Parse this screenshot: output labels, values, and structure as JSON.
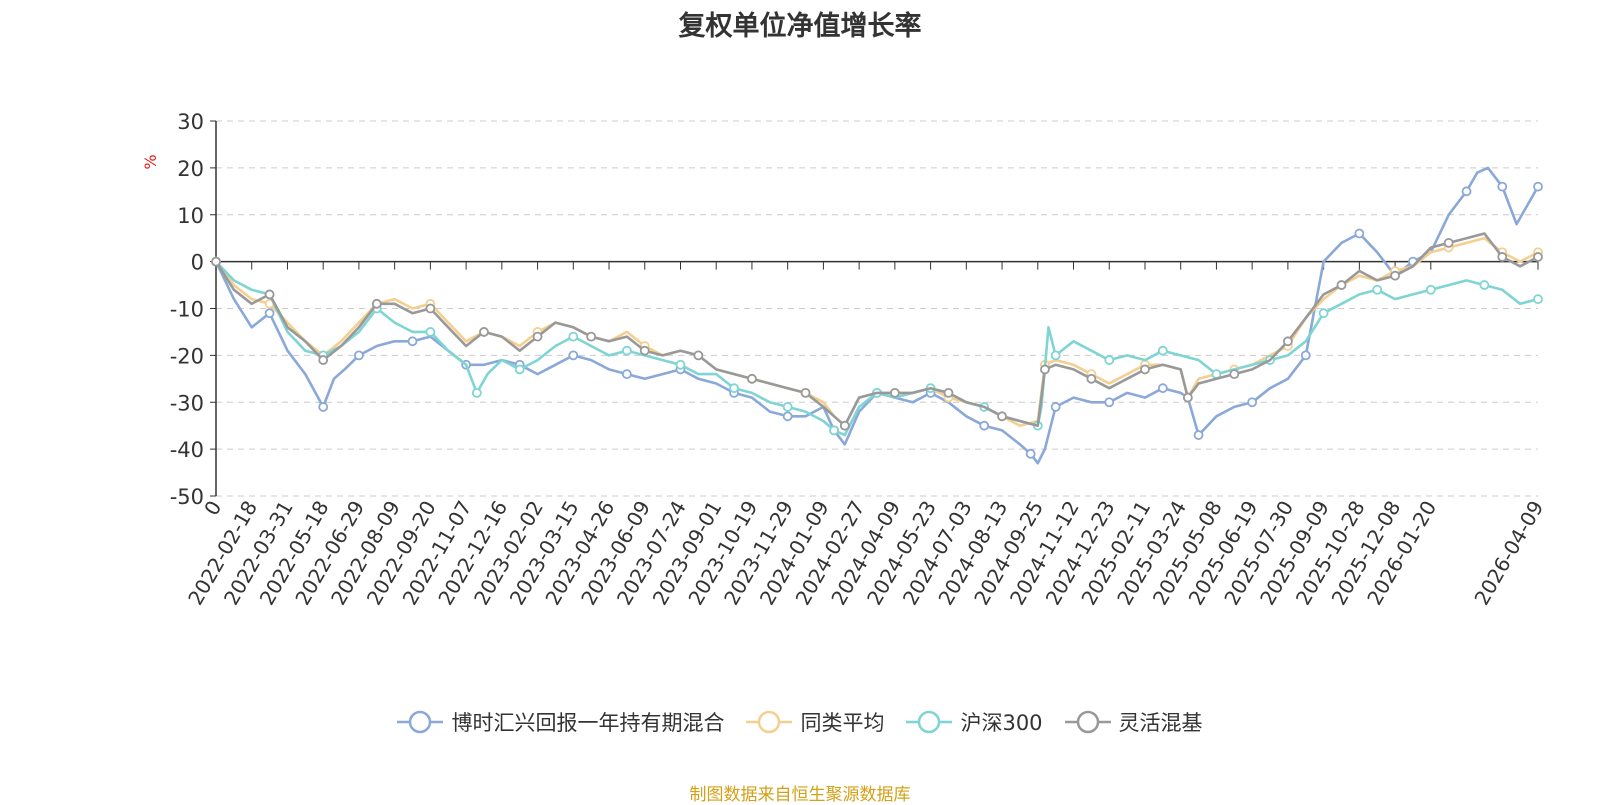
{
  "chart_data": {
    "type": "line",
    "title": "复权单位净值增长率",
    "ylabel": "%",
    "ylim": [
      -50,
      30
    ],
    "yticks": [
      30,
      20,
      10,
      0,
      -10,
      -20,
      -30,
      -40,
      -50
    ],
    "grid": true,
    "legend_position": "bottom",
    "x_tick_labels": [
      "0",
      "2022-02-18",
      "2022-03-31",
      "2022-05-18",
      "2022-06-29",
      "2022-08-09",
      "2022-09-20",
      "2022-11-07",
      "2022-12-16",
      "2023-02-02",
      "2023-03-15",
      "2023-04-26",
      "2023-06-09",
      "2023-07-24",
      "2023-09-01",
      "2023-10-19",
      "2023-11-29",
      "2024-01-09",
      "2024-02-27",
      "2024-04-09",
      "2024-05-23",
      "2024-07-03",
      "2024-08-13",
      "2024-09-25",
      "2024-11-12",
      "2024-12-23",
      "2025-02-11",
      "2025-03-24",
      "2025-05-08",
      "2025-06-19",
      "2025-07-30",
      "2025-09-09",
      "2025-10-28",
      "2025-12-08",
      "2026-01-20",
      "2026-04-09"
    ],
    "x_index_range": [
      0,
      37
    ],
    "x_tick_index": [
      0,
      1,
      2,
      3,
      4,
      5,
      6,
      7,
      8,
      9,
      10,
      11,
      12,
      13,
      14,
      15,
      16,
      17,
      18,
      19,
      20,
      21,
      22,
      23,
      24,
      25,
      26,
      27,
      28,
      29,
      30,
      31,
      32,
      33,
      34,
      37
    ],
    "series": [
      {
        "name": "博时汇兴回报一年持有期混合",
        "color": "#8aa8d8",
        "x": [
          0,
          0.5,
          1,
          1.5,
          2,
          2.5,
          3,
          3.3,
          3.6,
          4,
          4.5,
          5,
          5.5,
          6,
          6.5,
          7,
          7.5,
          8,
          8.5,
          9,
          9.5,
          10,
          10.5,
          11,
          11.5,
          12,
          12.5,
          13,
          13.5,
          14,
          14.5,
          15,
          15.5,
          16,
          16.5,
          17,
          17.3,
          17.6,
          18,
          18.5,
          19,
          19.5,
          20,
          20.5,
          21,
          21.5,
          22,
          22.5,
          22.8,
          23,
          23.2,
          23.5,
          24,
          24.5,
          25,
          25.5,
          26,
          26.5,
          27,
          27.2,
          27.5,
          28,
          28.5,
          29,
          29.5,
          30,
          30.5,
          31,
          31.5,
          32,
          32.5,
          33,
          33.5,
          34,
          34.5,
          35,
          35.3,
          35.6,
          36,
          36.4,
          36.7,
          37
        ],
        "y": [
          0,
          -8,
          -14,
          -11,
          -19,
          -24,
          -31,
          -25,
          -23,
          -20,
          -18,
          -17,
          -17,
          -16,
          -19,
          -22,
          -22,
          -21,
          -22,
          -24,
          -22,
          -20,
          -21,
          -23,
          -24,
          -25,
          -24,
          -23,
          -25,
          -26,
          -28,
          -29,
          -32,
          -33,
          -33,
          -31,
          -36,
          -39,
          -32,
          -28,
          -29,
          -30,
          -28,
          -30,
          -33,
          -35,
          -36,
          -39,
          -41,
          -43,
          -40,
          -31,
          -29,
          -30,
          -30,
          -28,
          -29,
          -27,
          -28,
          -29,
          -37,
          -33,
          -31,
          -30,
          -27,
          -25,
          -20,
          0,
          4,
          6,
          2,
          -3,
          0,
          2,
          10,
          15,
          19,
          20,
          16,
          8,
          12,
          16
        ]
      },
      {
        "name": "同类平均",
        "color": "#f5cf8f",
        "x": [
          0,
          0.5,
          1,
          1.5,
          2,
          2.5,
          3,
          3.5,
          4,
          4.5,
          5,
          5.5,
          6,
          6.5,
          7,
          7.5,
          8,
          8.5,
          9,
          9.5,
          10,
          10.5,
          11,
          11.5,
          12,
          12.5,
          13,
          13.5,
          14,
          14.5,
          15,
          15.5,
          16,
          16.5,
          17,
          17.3,
          17.6,
          18,
          18.5,
          19,
          19.5,
          20,
          20.5,
          21,
          21.5,
          22,
          22.5,
          23,
          23.2,
          23.5,
          24,
          24.5,
          25,
          25.5,
          26,
          26.5,
          27,
          27.2,
          27.5,
          28,
          28.5,
          29,
          29.5,
          30,
          30.5,
          31,
          31.5,
          32,
          32.5,
          33,
          33.5,
          34,
          34.5,
          35,
          35.5,
          36,
          36.5,
          37
        ],
        "y": [
          0,
          -5,
          -8,
          -9,
          -13,
          -17,
          -20,
          -17,
          -13,
          -9,
          -8,
          -10,
          -9,
          -13,
          -17,
          -15,
          -16,
          -18,
          -15,
          -13,
          -14,
          -16,
          -17,
          -15,
          -18,
          -20,
          -19,
          -20,
          -23,
          -24,
          -25,
          -26,
          -27,
          -28,
          -30,
          -33,
          -35,
          -29,
          -28,
          -28,
          -28,
          -27,
          -29,
          -30,
          -31,
          -33,
          -35,
          -34,
          -22,
          -21,
          -22,
          -24,
          -26,
          -24,
          -22,
          -22,
          -23,
          -29,
          -25,
          -24,
          -23,
          -22,
          -20,
          -18,
          -12,
          -8,
          -5,
          -3,
          -4,
          -2,
          -1,
          2,
          3,
          4,
          5,
          2,
          0,
          2
        ]
      },
      {
        "name": "沪深300",
        "color": "#7fd4d4",
        "x": [
          0,
          0.5,
          1,
          1.5,
          2,
          2.5,
          3,
          3.5,
          4,
          4.5,
          5,
          5.5,
          6,
          6.5,
          7,
          7.3,
          7.6,
          8,
          8.5,
          9,
          9.5,
          10,
          10.5,
          11,
          11.5,
          12,
          12.5,
          13,
          13.5,
          14,
          14.5,
          15,
          15.5,
          16,
          16.5,
          17,
          17.3,
          17.6,
          18,
          18.5,
          19,
          19.5,
          20,
          20.5,
          21,
          21.5,
          22,
          22.5,
          23,
          23.1,
          23.3,
          23.5,
          24,
          24.5,
          25,
          25.5,
          26,
          26.5,
          27,
          27.5,
          28,
          28.5,
          29,
          29.5,
          30,
          30.5,
          31,
          31.5,
          32,
          32.5,
          33,
          33.5,
          34,
          34.5,
          35,
          35.5,
          36,
          36.5,
          37
        ],
        "y": [
          0,
          -4,
          -6,
          -7,
          -15,
          -19,
          -20,
          -18,
          -15,
          -10,
          -13,
          -15,
          -15,
          -19,
          -22,
          -28,
          -24,
          -21,
          -23,
          -21,
          -18,
          -16,
          -18,
          -20,
          -19,
          -20,
          -21,
          -22,
          -24,
          -24,
          -27,
          -28,
          -30,
          -31,
          -32,
          -34,
          -36,
          -37,
          -31,
          -28,
          -29,
          -28,
          -27,
          -28,
          -30,
          -31,
          -33,
          -34,
          -35,
          -31,
          -14,
          -20,
          -17,
          -19,
          -21,
          -20,
          -21,
          -19,
          -20,
          -21,
          -24,
          -23,
          -22,
          -21,
          -20,
          -17,
          -11,
          -9,
          -7,
          -6,
          -8,
          -7,
          -6,
          -5,
          -4,
          -5,
          -6,
          -9,
          -8
        ]
      },
      {
        "name": "灵活混基",
        "color": "#999999",
        "x": [
          0,
          0.5,
          1,
          1.5,
          2,
          2.5,
          3,
          3.5,
          4,
          4.5,
          5,
          5.5,
          6,
          6.5,
          7,
          7.5,
          8,
          8.5,
          9,
          9.5,
          10,
          10.5,
          11,
          11.5,
          12,
          12.5,
          13,
          13.5,
          14,
          14.5,
          15,
          15.5,
          16,
          16.5,
          17,
          17.3,
          17.6,
          18,
          18.5,
          19,
          19.5,
          20,
          20.5,
          21,
          21.5,
          22,
          22.5,
          23,
          23.2,
          23.5,
          24,
          24.5,
          25,
          25.5,
          26,
          26.5,
          27,
          27.2,
          27.5,
          28,
          28.5,
          29,
          29.5,
          30,
          30.5,
          31,
          31.5,
          32,
          32.5,
          33,
          33.5,
          34,
          34.5,
          35,
          35.5,
          36,
          36.5,
          37
        ],
        "y": [
          0,
          -6,
          -9,
          -7,
          -14,
          -17,
          -21,
          -18,
          -14,
          -9,
          -9,
          -11,
          -10,
          -14,
          -18,
          -15,
          -16,
          -19,
          -16,
          -13,
          -14,
          -16,
          -17,
          -16,
          -19,
          -20,
          -19,
          -20,
          -23,
          -24,
          -25,
          -26,
          -27,
          -28,
          -31,
          -33,
          -35,
          -29,
          -28,
          -28,
          -28,
          -27,
          -28,
          -30,
          -31,
          -33,
          -34,
          -35,
          -23,
          -22,
          -23,
          -25,
          -27,
          -25,
          -23,
          -22,
          -23,
          -29,
          -26,
          -25,
          -24,
          -23,
          -21,
          -17,
          -12,
          -7,
          -5,
          -2,
          -4,
          -3,
          -1,
          3,
          4,
          5,
          6,
          1,
          -1,
          1
        ]
      }
    ]
  },
  "source_note": "制图数据来自恒生聚源数据库"
}
